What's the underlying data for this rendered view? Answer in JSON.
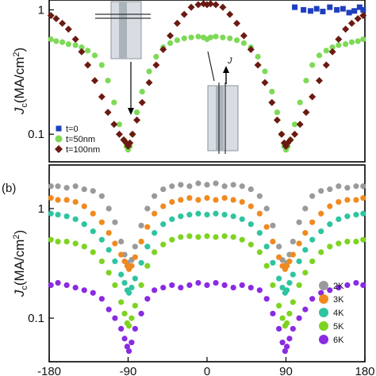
{
  "chart_data": [
    {
      "panel": "a",
      "type": "scatter",
      "ylabel": "J_c(MA/cm²)",
      "yscale": "log",
      "xlim": [
        -180,
        180
      ],
      "ylim": [
        0.06,
        1.2
      ],
      "y_ticks": [
        {
          "value": 0.1,
          "label": "0.1"
        },
        {
          "value": 1,
          "label": "1"
        }
      ],
      "inset_annotation": "J",
      "series": [
        {
          "name": "t=0",
          "marker": "square",
          "color": "#1f3fbf",
          "x": [
            100,
            110,
            118,
            125,
            132,
            140,
            148,
            155,
            162,
            168,
            174,
            178
          ],
          "y": [
            1.05,
            1.0,
            0.98,
            1.02,
            0.97,
            1.05,
            1.0,
            1.02,
            0.95,
            0.98,
            1.05,
            1.0
          ]
        },
        {
          "name": "t=50nm",
          "marker": "circle",
          "color": "#7ed957",
          "x": [
            -178,
            -172,
            -165,
            -158,
            -150,
            -143,
            -136,
            -128,
            -120,
            -113,
            -106,
            -100,
            -95,
            -92,
            -90,
            -88,
            -85,
            -80,
            -74,
            -66,
            -58,
            -50,
            -42,
            -34,
            -26,
            -18,
            -10,
            -4,
            0,
            4,
            10,
            18,
            26,
            34,
            42,
            50,
            58,
            66,
            74,
            80,
            85,
            88,
            90,
            92,
            95,
            100,
            106,
            113,
            120,
            128,
            136,
            143,
            150,
            158,
            165,
            172,
            178
          ],
          "y": [
            0.58,
            0.56,
            0.55,
            0.53,
            0.52,
            0.5,
            0.47,
            0.43,
            0.36,
            0.27,
            0.18,
            0.12,
            0.09,
            0.08,
            0.075,
            0.08,
            0.1,
            0.15,
            0.22,
            0.32,
            0.42,
            0.5,
            0.54,
            0.57,
            0.59,
            0.6,
            0.61,
            0.6,
            0.58,
            0.6,
            0.61,
            0.6,
            0.59,
            0.57,
            0.54,
            0.5,
            0.42,
            0.32,
            0.22,
            0.15,
            0.1,
            0.08,
            0.075,
            0.08,
            0.09,
            0.12,
            0.18,
            0.27,
            0.36,
            0.43,
            0.47,
            0.5,
            0.52,
            0.53,
            0.55,
            0.56,
            0.58
          ]
        },
        {
          "name": "t=100nm",
          "marker": "diamond",
          "color": "#6b1a12",
          "x": [
            -178,
            -172,
            -165,
            -158,
            -150,
            -143,
            -136,
            -128,
            -120,
            -113,
            -106,
            -100,
            -95,
            -92,
            -90,
            -88,
            -85,
            -80,
            -74,
            -66,
            -58,
            -50,
            -42,
            -34,
            -26,
            -18,
            -10,
            -4,
            0,
            4,
            10,
            18,
            26,
            34,
            42,
            50,
            58,
            66,
            74,
            80,
            85,
            88,
            90,
            92,
            95,
            100,
            106,
            113,
            120,
            128,
            136,
            143,
            150,
            158,
            165,
            172,
            178
          ],
          "y": [
            0.9,
            0.85,
            0.78,
            0.7,
            0.58,
            0.46,
            0.36,
            0.27,
            0.2,
            0.15,
            0.12,
            0.1,
            0.09,
            0.085,
            0.08,
            0.085,
            0.1,
            0.13,
            0.18,
            0.26,
            0.36,
            0.48,
            0.62,
            0.78,
            0.92,
            1.05,
            1.1,
            1.12,
            1.1,
            1.12,
            1.1,
            1.05,
            0.92,
            0.78,
            0.62,
            0.48,
            0.36,
            0.26,
            0.18,
            0.13,
            0.1,
            0.085,
            0.08,
            0.085,
            0.09,
            0.1,
            0.12,
            0.15,
            0.2,
            0.27,
            0.36,
            0.46,
            0.58,
            0.7,
            0.78,
            0.85,
            0.9
          ]
        }
      ]
    },
    {
      "panel": "b",
      "panel_label": "(b)",
      "type": "scatter",
      "ylabel": "J_c(MA/cm²)",
      "yscale": "log",
      "xlim": [
        -180,
        180
      ],
      "ylim": [
        0.04,
        2.5
      ],
      "y_ticks": [
        {
          "value": 0.1,
          "label": "0.1"
        },
        {
          "value": 1,
          "label": "1"
        }
      ],
      "x_ticks": [
        {
          "value": -180,
          "label": "-180"
        },
        {
          "value": -90,
          "label": "-90"
        },
        {
          "value": 0,
          "label": "0"
        },
        {
          "value": 90,
          "label": "90"
        },
        {
          "value": 180,
          "label": "180"
        }
      ],
      "series": [
        {
          "name": "2K",
          "color": "#9a9a9a",
          "x": [
            -178,
            -170,
            -160,
            -150,
            -140,
            -130,
            -120,
            -112,
            -105,
            -98,
            -94,
            -91,
            -89,
            -86,
            -82,
            -75,
            -68,
            -60,
            -50,
            -40,
            -30,
            -20,
            -10,
            0,
            10,
            20,
            30,
            40,
            50,
            60,
            68,
            75,
            82,
            86,
            89,
            91,
            94,
            98,
            105,
            112,
            120,
            130,
            140,
            150,
            160,
            170,
            178
          ],
          "y": [
            1.6,
            1.6,
            1.55,
            1.6,
            1.5,
            1.45,
            1.3,
            1.0,
            0.75,
            0.5,
            0.38,
            0.32,
            0.3,
            0.34,
            0.45,
            0.7,
            1.0,
            1.3,
            1.5,
            1.6,
            1.65,
            1.6,
            1.7,
            1.65,
            1.7,
            1.6,
            1.65,
            1.6,
            1.5,
            1.3,
            1.0,
            0.7,
            0.45,
            0.34,
            0.3,
            0.32,
            0.38,
            0.5,
            0.75,
            1.0,
            1.3,
            1.45,
            1.5,
            1.6,
            1.55,
            1.6,
            1.6
          ]
        },
        {
          "name": "3K",
          "color": "#f08a1f",
          "x": [
            -178,
            -170,
            -160,
            -150,
            -140,
            -130,
            -120,
            -112,
            -105,
            -98,
            -94,
            -91,
            -89,
            -86,
            -82,
            -75,
            -68,
            -60,
            -50,
            -40,
            -30,
            -20,
            -10,
            0,
            10,
            20,
            30,
            40,
            50,
            60,
            68,
            75,
            82,
            86,
            89,
            91,
            94,
            98,
            105,
            112,
            120,
            130,
            140,
            150,
            160,
            170,
            178
          ],
          "y": [
            1.25,
            1.2,
            1.2,
            1.15,
            1.05,
            0.9,
            0.75,
            0.6,
            0.48,
            0.38,
            0.33,
            0.3,
            0.28,
            0.3,
            0.36,
            0.5,
            0.68,
            0.9,
            1.05,
            1.15,
            1.2,
            1.25,
            1.2,
            1.25,
            1.2,
            1.25,
            1.2,
            1.15,
            1.05,
            0.9,
            0.68,
            0.5,
            0.36,
            0.3,
            0.28,
            0.3,
            0.33,
            0.38,
            0.48,
            0.6,
            0.75,
            0.9,
            1.05,
            1.15,
            1.2,
            1.2,
            1.25
          ]
        },
        {
          "name": "4K",
          "color": "#2fc4a0",
          "x": [
            -178,
            -170,
            -160,
            -150,
            -140,
            -130,
            -120,
            -112,
            -105,
            -98,
            -94,
            -91,
            -89,
            -86,
            -82,
            -75,
            -68,
            -60,
            -50,
            -40,
            -30,
            -20,
            -10,
            0,
            10,
            20,
            30,
            40,
            50,
            60,
            68,
            75,
            82,
            86,
            89,
            91,
            94,
            98,
            105,
            112,
            120,
            130,
            140,
            150,
            160,
            170,
            178
          ],
          "y": [
            0.9,
            0.88,
            0.85,
            0.8,
            0.72,
            0.62,
            0.52,
            0.42,
            0.33,
            0.25,
            0.21,
            0.18,
            0.17,
            0.19,
            0.23,
            0.32,
            0.45,
            0.6,
            0.72,
            0.8,
            0.85,
            0.88,
            0.9,
            0.88,
            0.9,
            0.88,
            0.85,
            0.8,
            0.72,
            0.6,
            0.45,
            0.32,
            0.23,
            0.19,
            0.17,
            0.18,
            0.21,
            0.25,
            0.33,
            0.42,
            0.52,
            0.62,
            0.72,
            0.8,
            0.85,
            0.88,
            0.9
          ]
        },
        {
          "name": "5K",
          "color": "#7ed321",
          "x": [
            -178,
            -170,
            -160,
            -150,
            -140,
            -130,
            -120,
            -112,
            -105,
            -98,
            -94,
            -91,
            -89,
            -86,
            -82,
            -75,
            -68,
            -60,
            -50,
            -40,
            -30,
            -20,
            -10,
            0,
            10,
            20,
            30,
            40,
            50,
            60,
            68,
            75,
            82,
            86,
            89,
            91,
            94,
            98,
            105,
            112,
            120,
            130,
            140,
            150,
            160,
            170,
            178
          ],
          "y": [
            0.52,
            0.5,
            0.5,
            0.48,
            0.45,
            0.4,
            0.33,
            0.26,
            0.2,
            0.14,
            0.11,
            0.09,
            0.085,
            0.1,
            0.13,
            0.2,
            0.3,
            0.4,
            0.47,
            0.52,
            0.55,
            0.56,
            0.55,
            0.56,
            0.55,
            0.56,
            0.55,
            0.52,
            0.47,
            0.4,
            0.3,
            0.2,
            0.13,
            0.1,
            0.085,
            0.09,
            0.11,
            0.14,
            0.2,
            0.26,
            0.33,
            0.4,
            0.45,
            0.48,
            0.5,
            0.5,
            0.52
          ]
        },
        {
          "name": "6K",
          "color": "#8a2be2",
          "x": [
            -178,
            -170,
            -160,
            -150,
            -140,
            -130,
            -120,
            -112,
            -105,
            -98,
            -94,
            -91,
            -89,
            -86,
            -82,
            -75,
            -68,
            -60,
            -50,
            -40,
            -30,
            -20,
            -10,
            0,
            10,
            20,
            30,
            40,
            50,
            60,
            68,
            75,
            82,
            86,
            89,
            91,
            94,
            98,
            105,
            112,
            120,
            130,
            140,
            150,
            160,
            170,
            178
          ],
          "y": [
            0.2,
            0.21,
            0.2,
            0.19,
            0.18,
            0.17,
            0.15,
            0.12,
            0.1,
            0.08,
            0.065,
            0.055,
            0.05,
            0.06,
            0.08,
            0.11,
            0.15,
            0.18,
            0.19,
            0.2,
            0.19,
            0.2,
            0.21,
            0.2,
            0.21,
            0.2,
            0.19,
            0.2,
            0.19,
            0.18,
            0.15,
            0.11,
            0.08,
            0.06,
            0.05,
            0.055,
            0.065,
            0.08,
            0.1,
            0.12,
            0.15,
            0.17,
            0.18,
            0.19,
            0.2,
            0.21,
            0.2
          ]
        }
      ]
    }
  ]
}
